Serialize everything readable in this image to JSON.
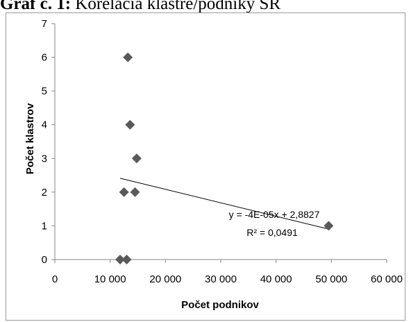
{
  "chart_data": {
    "type": "scatter",
    "title_bold": "Graf č. 1:",
    "title_rest": " Korelácia klastre/podniky SR",
    "xlabel": "Počet podnikov",
    "ylabel": "Počet klastrov",
    "xlim": [
      0,
      60000
    ],
    "ylim": [
      0,
      7
    ],
    "xticks": [
      "0",
      "10 000",
      "20 000",
      "30 000",
      "40 000",
      "50 000",
      "60 000"
    ],
    "yticks": [
      "0",
      "1",
      "2",
      "3",
      "4",
      "5",
      "6",
      "7"
    ],
    "points": [
      {
        "x": 13200,
        "y": 6
      },
      {
        "x": 13600,
        "y": 4
      },
      {
        "x": 14800,
        "y": 3
      },
      {
        "x": 12500,
        "y": 2
      },
      {
        "x": 14500,
        "y": 2
      },
      {
        "x": 49500,
        "y": 1
      },
      {
        "x": 11800,
        "y": 0
      },
      {
        "x": 13000,
        "y": 0
      }
    ],
    "trendline": {
      "slope": -4e-05,
      "intercept": 2.8827,
      "x_start": 11800,
      "x_end": 49500
    },
    "equation_label": "y = -4E-05x + 2,8827",
    "r2_label": "R² = 0,0491",
    "marker_color": "#595959",
    "trend_color": "#000000",
    "grid": false
  }
}
